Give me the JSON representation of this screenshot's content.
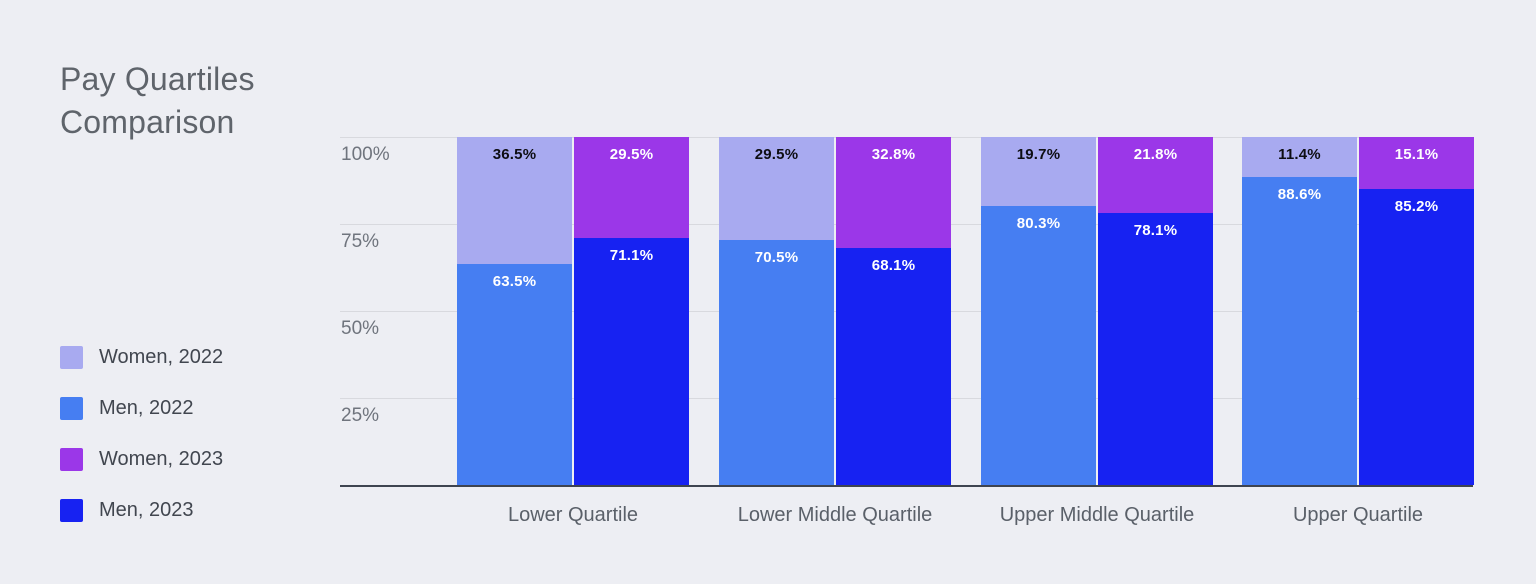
{
  "title": "Pay Quartiles Comparison",
  "colors": {
    "background": "#edeef3",
    "women_2022": "#a8aaf0",
    "men_2022": "#467ef2",
    "women_2023": "#9b37e8",
    "men_2023": "#1722f2",
    "gridline": "#d8d9de",
    "baseline": "#3e4450",
    "label_on_light": "#0d0d12",
    "label_on_dark": "#ffffff"
  },
  "legend": {
    "items": [
      {
        "label": "Women, 2022",
        "color_key": "women_2022"
      },
      {
        "label": "Men, 2022",
        "color_key": "men_2022"
      },
      {
        "label": "Women, 2023",
        "color_key": "women_2023"
      },
      {
        "label": "Men, 2023",
        "color_key": "men_2023"
      }
    ]
  },
  "chart_data": {
    "type": "bar",
    "stacked": true,
    "title": "Pay Quartiles Comparison",
    "categories": [
      "Lower Quartile",
      "Lower Middle Quartile",
      "Upper Middle Quartile",
      "Upper Quartile"
    ],
    "y_ticks": [
      "100%",
      "75%",
      "50%",
      "25%"
    ],
    "ylim": [
      0,
      100
    ],
    "grid": true,
    "legend_position": "left",
    "series": [
      {
        "name": "Women, 2022",
        "color_key": "women_2022",
        "values": [
          36.5,
          29.5,
          19.7,
          11.4
        ]
      },
      {
        "name": "Men, 2022",
        "color_key": "men_2022",
        "values": [
          63.5,
          70.5,
          80.3,
          88.6
        ]
      },
      {
        "name": "Women, 2023",
        "color_key": "women_2023",
        "values": [
          29.5,
          32.8,
          21.8,
          15.1
        ]
      },
      {
        "name": "Men, 2023",
        "color_key": "men_2023",
        "values": [
          71.1,
          68.1,
          78.1,
          85.2
        ]
      }
    ],
    "stacks_per_category": [
      {
        "year": "2022",
        "top_series": "Women, 2022",
        "bottom_series": "Men, 2022"
      },
      {
        "year": "2023",
        "top_series": "Women, 2023",
        "bottom_series": "Men, 2023"
      }
    ]
  }
}
